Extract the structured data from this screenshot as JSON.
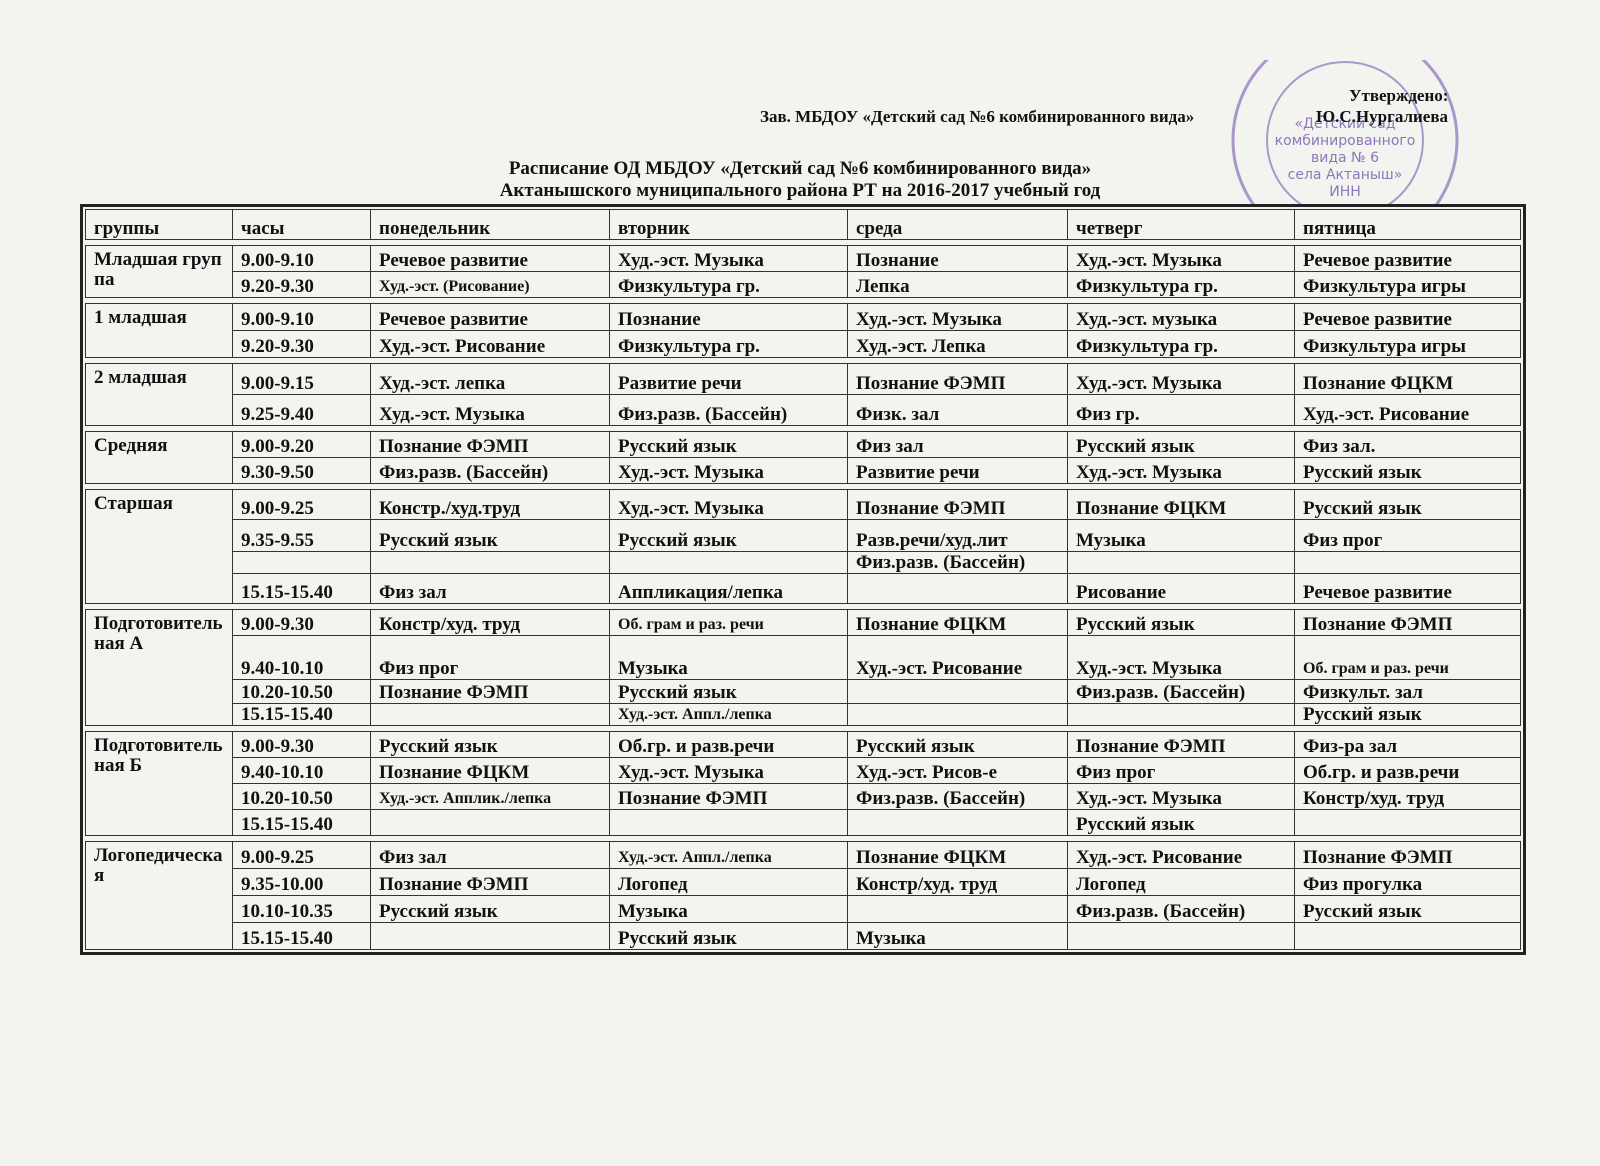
{
  "header": {
    "approved": "Утверждено:",
    "position": "Зав. МБДОУ «Детский сад №6 комбинированного вида»",
    "signatory": "Ю.С.Нургалиева"
  },
  "stamp": {
    "lines": [
      "«Детский сад",
      "комбинированного",
      "вида № 6",
      "села Актаныш»",
      "ИНН"
    ]
  },
  "title": {
    "line1": "Расписание ОД  МБДОУ «Детский сад №6 комбинированного вида»",
    "line2": "Актанышского муниципального района  РТ  на 2016-2017 учебный год"
  },
  "table": {
    "header": [
      "группы",
      "часы",
      "понедельник",
      "вторник",
      "среда",
      "четверг",
      "пятница"
    ],
    "groups": [
      {
        "name": "Младшая группа",
        "rows": [
          {
            "time": "9.00-9.10",
            "cells": [
              "Речевое развитие",
              "Худ.-эст. Музыка",
              "Познание",
              "Худ.-эст. Музыка",
              "Речевое развитие"
            ]
          },
          {
            "time": "9.20-9.30",
            "cells": [
              "Худ.-эст. (Рисование)",
              "Физкультура гр.",
              "Лепка",
              "Физкультура гр.",
              "Физкультура игры"
            ]
          }
        ]
      },
      {
        "name": "1 младшая",
        "rows": [
          {
            "time": "9.00-9.10",
            "cells": [
              "Речевое развитие",
              "Познание",
              "Худ.-эст. Музыка",
              "Худ.-эст. музыка",
              "Речевое развитие"
            ]
          },
          {
            "time": "9.20-9.30",
            "cells": [
              "Худ.-эст. Рисование",
              "Физкультура гр.",
              "Худ.-эст. Лепка",
              "Физкультура гр.",
              "Физкультура игры"
            ]
          }
        ]
      },
      {
        "name": "2 младшая",
        "rows": [
          {
            "time": "9.00-9.15",
            "cells": [
              "Худ.-эст. лепка",
              "Развитие речи",
              "Познание ФЭМП",
              "Худ.-эст. Музыка",
              "Познание ФЦКМ"
            ]
          },
          {
            "time": "9.25-9.40",
            "cells": [
              "Худ.-эст. Музыка",
              "Физ.разв. (Бассейн)",
              "Физк. зал",
              "Физ гр.",
              "Худ.-эст. Рисование"
            ]
          }
        ]
      },
      {
        "name": "Средняя",
        "rows": [
          {
            "time": "9.00-9.20",
            "cells": [
              "Познание ФЭМП",
              "Русский язык",
              "Физ зал",
              "Русский язык",
              "Физ зал."
            ]
          },
          {
            "time": "9.30-9.50",
            "cells": [
              "Физ.разв. (Бассейн)",
              "Худ.-эст. Музыка",
              "Развитие речи",
              "Худ.-эст. Музыка",
              "Русский язык"
            ]
          }
        ]
      },
      {
        "name": "Старшая",
        "rows": [
          {
            "time": "9.00-9.25",
            "cells": [
              "Констр./худ.труд",
              "Худ.-эст. Музыка",
              "Познание ФЭМП",
              "Познание ФЦКМ",
              "Русский язык"
            ]
          },
          {
            "time": "9.35-9.55",
            "cells": [
              "Русский язык",
              "Русский язык",
              "Разв.речи/худ.лит",
              "Музыка",
              "Физ прог"
            ]
          },
          {
            "time": null,
            "cells": [
              null,
              null,
              "Физ.разв. (Бассейн)",
              null,
              null
            ]
          },
          {
            "time": "15.15-15.40",
            "cells": [
              "Физ зал",
              "Аппликация/лепка",
              null,
              "Рисованиe",
              "Речевое развитие"
            ]
          }
        ]
      },
      {
        "name": "Подготовительная А",
        "rows": [
          {
            "time": "9.00-9.30",
            "cells": [
              "Констр/худ. труд",
              "Об. грам и раз. речи",
              "Познание ФЦКМ",
              "Русский язык",
              "Познание ФЭМП"
            ]
          },
          {
            "time": "9.40-10.10",
            "cells": [
              "Физ прог",
              "Музыка",
              "Худ.-эст. Рисование",
              "Худ.-эст. Музыка",
              "Об. грам и раз. речи"
            ]
          },
          {
            "time": "10.20-10.50",
            "cells": [
              "Познание ФЭМП",
              "Русский язык",
              null,
              "Физ.разв. (Бассейн)",
              "Физкульт. зал"
            ]
          },
          {
            "time": "15.15-15.40",
            "cells": [
              null,
              "Худ.-эст. Аппл./лепка",
              null,
              null,
              "Русский язык"
            ]
          }
        ]
      },
      {
        "name": "Подготовительная Б",
        "rows": [
          {
            "time": "9.00-9.30",
            "cells": [
              "Русский язык",
              "Об.гр. и разв.речи",
              "Русский язык",
              "Познание ФЭМП",
              "Физ-ра зал"
            ]
          },
          {
            "time": "9.40-10.10",
            "cells": [
              "Познание ФЦКМ",
              "Худ.-эст. Музыка",
              "Худ.-эст. Рисов-е",
              "Физ прог",
              "Об.гр. и разв.речи"
            ]
          },
          {
            "time": "10.20-10.50",
            "cells": [
              "Худ.-эст. Апплик./лепка",
              "Познание ФЭМП",
              "Физ.разв. (Бассейн)",
              "Худ.-эст. Музыка",
              "Констр/худ. труд"
            ]
          },
          {
            "time": "15.15-15.40",
            "cells": [
              null,
              null,
              null,
              "Русский язык",
              null
            ]
          }
        ]
      },
      {
        "name": "Логопедическая",
        "rows": [
          {
            "time": "9.00-9.25",
            "cells": [
              "Физ зал",
              "Худ.-эст. Аппл./лепка",
              "Познание ФЦКМ",
              "Худ.-эст. Рисование",
              "Познание ФЭМП"
            ]
          },
          {
            "time": "9.35-10.00",
            "cells": [
              "Познание ФЭМП",
              "Логопед",
              "Констр/худ. труд",
              "Логопед",
              "Физ прогулка"
            ]
          },
          {
            "time": "10.10-10.35",
            "cells": [
              "Русский язык",
              "Музыка",
              null,
              "Физ.разв. (Бассейн)",
              "Русский язык"
            ]
          },
          {
            "time": "15.15-15.40",
            "cells": [
              null,
              "Русский язык",
              "Музыка",
              null,
              null
            ]
          }
        ]
      }
    ]
  }
}
